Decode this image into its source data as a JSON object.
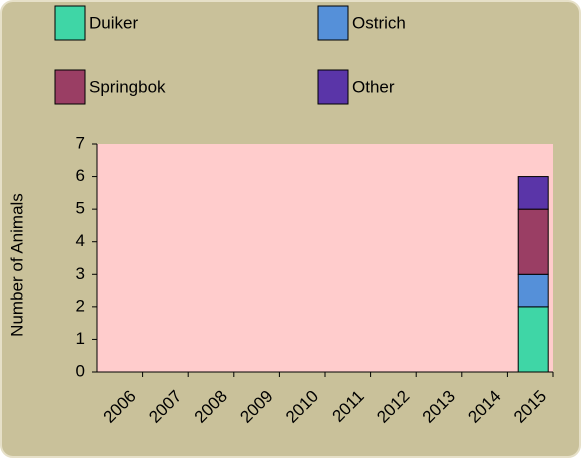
{
  "chart_data": {
    "type": "stacked_bar",
    "categories": [
      "2006",
      "2007",
      "2008",
      "2009",
      "2010",
      "2011",
      "2012",
      "2013",
      "2014",
      "2015"
    ],
    "series": [
      {
        "name": "Duiker",
        "color": "#3fd6a6",
        "values": [
          0,
          0,
          0,
          0,
          0,
          0,
          0,
          0,
          0,
          2
        ]
      },
      {
        "name": "Ostrich",
        "color": "#5590d9",
        "values": [
          0,
          0,
          0,
          0,
          0,
          0,
          0,
          0,
          0,
          1
        ]
      },
      {
        "name": "Springbok",
        "color": "#9a3e64",
        "values": [
          0,
          0,
          0,
          0,
          0,
          0,
          0,
          0,
          0,
          2
        ]
      },
      {
        "name": "Other",
        "color": "#5a35a8",
        "values": [
          0,
          0,
          0,
          0,
          0,
          0,
          0,
          0,
          0,
          1
        ]
      }
    ],
    "y_label": "Number of Animals",
    "ylim": [
      0,
      7
    ],
    "yticks": [
      0,
      1,
      2,
      3,
      4,
      5,
      6,
      7
    ]
  }
}
